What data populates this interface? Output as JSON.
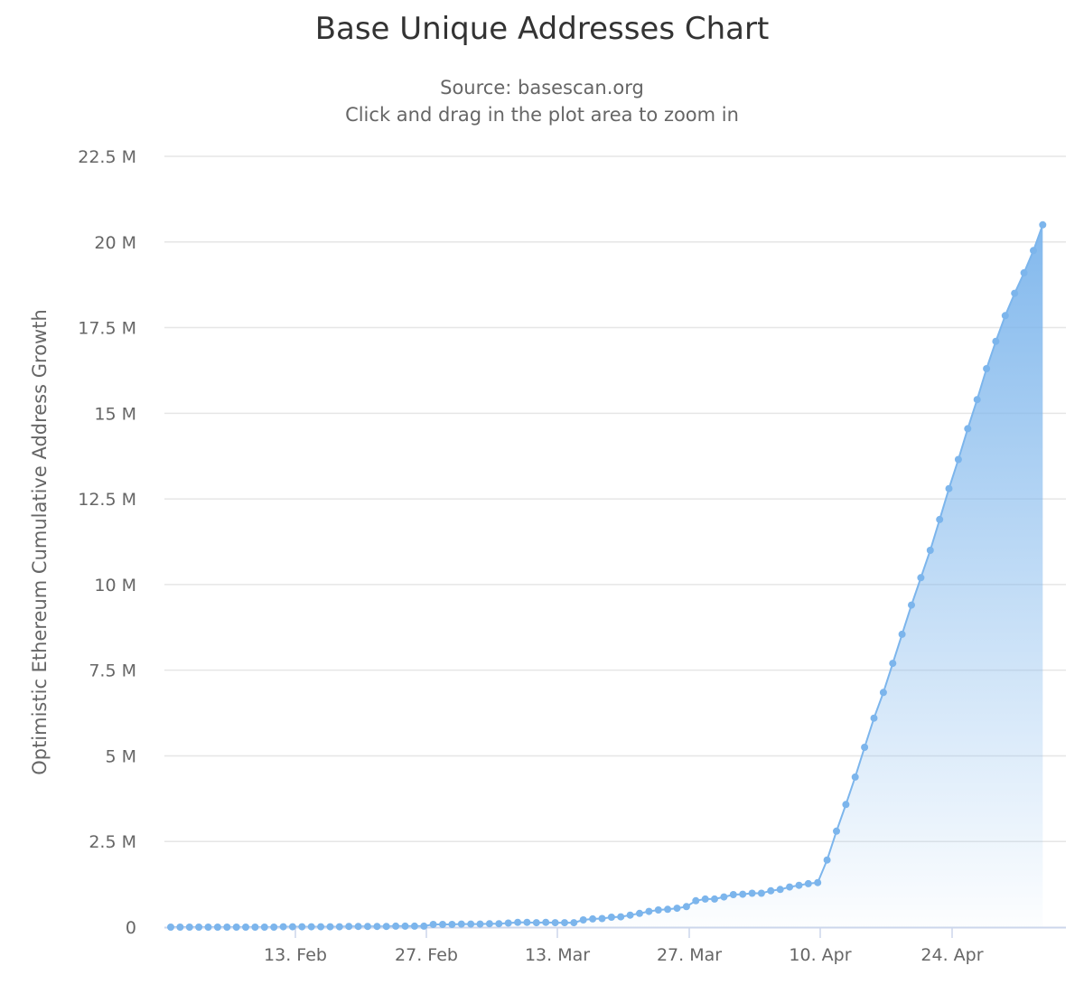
{
  "header": {
    "title": "Base Unique Addresses Chart",
    "subtitle_line1": "Source: basescan.org",
    "subtitle_line2": "Click and drag in the plot area to zoom in"
  },
  "colors": {
    "series": "#7cb5ec",
    "grid": "#e6e6e6",
    "axis": "#ccd6eb",
    "text": "#666666",
    "title": "#333333"
  },
  "chart_data": {
    "type": "area",
    "title": "Base Unique Addresses Chart",
    "subtitle": "Source: basescan.org",
    "xlabel": "",
    "ylabel": "Optimistic Ethereum Cumulative Address Growth",
    "ylim": [
      0,
      22500000
    ],
    "yticks": [
      0,
      2500000,
      5000000,
      7500000,
      10000000,
      12500000,
      15000000,
      17500000,
      20000000,
      22500000
    ],
    "ytick_labels": [
      "0",
      "2.5 M",
      "5 M",
      "7.5 M",
      "10 M",
      "12.5 M",
      "15 M",
      "17.5 M",
      "20 M",
      "22.5 M"
    ],
    "xtick_labels": [
      "13. Feb",
      "27. Feb",
      "13. Mar",
      "27. Mar",
      "10. Apr",
      "24. Apr"
    ],
    "grid": true,
    "legend": false,
    "x_start": "31. Jan",
    "x_end": "5. May",
    "x_interval": "1 day",
    "series": [
      {
        "name": "Optimistic Ethereum Cumulative Address Growth",
        "unit": "M",
        "values": [
          0.0,
          0.0,
          0.0,
          0.0,
          0.0,
          0.0,
          0.0,
          0.0,
          0.0,
          0.0,
          0.0,
          0.0,
          0.01,
          0.01,
          0.01,
          0.01,
          0.01,
          0.01,
          0.01,
          0.02,
          0.02,
          0.02,
          0.02,
          0.02,
          0.03,
          0.03,
          0.03,
          0.03,
          0.08,
          0.08,
          0.08,
          0.09,
          0.09,
          0.09,
          0.1,
          0.1,
          0.12,
          0.14,
          0.14,
          0.13,
          0.14,
          0.13,
          0.13,
          0.13,
          0.21,
          0.24,
          0.25,
          0.29,
          0.3,
          0.35,
          0.4,
          0.46,
          0.5,
          0.52,
          0.55,
          0.6,
          0.77,
          0.82,
          0.82,
          0.88,
          0.95,
          0.96,
          0.99,
          0.99,
          1.06,
          1.1,
          1.17,
          1.22,
          1.27,
          1.3,
          1.96,
          2.8,
          3.58,
          4.38,
          5.25,
          6.1,
          6.85,
          7.7,
          8.55,
          9.4,
          10.2,
          11.0,
          11.9,
          12.8,
          13.65,
          14.55,
          15.4,
          16.3,
          17.1,
          17.85,
          18.5,
          19.1,
          19.75,
          20.5
        ]
      }
    ]
  }
}
